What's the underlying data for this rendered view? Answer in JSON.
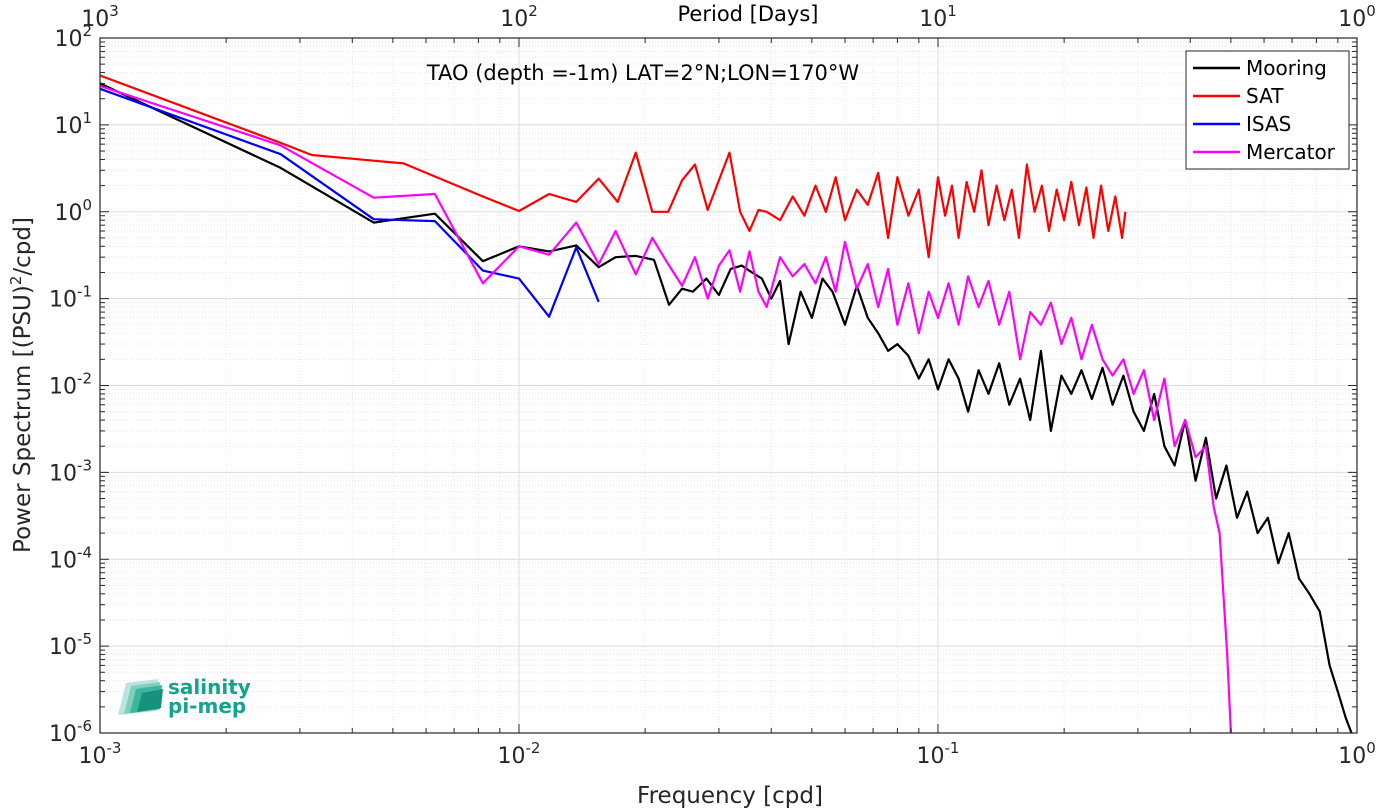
{
  "chart_data": {
    "type": "line",
    "title": "TAO (depth =-1m) LAT=2°N;LON=170°W",
    "xlabel": "Frequency [cpd]",
    "ylabel": "Power Spectrum [(PSU)",
    "ylabel_sup": "2",
    "ylabel_tail": "/cpd]",
    "top_xlabel": "Period [Days]",
    "xscale": "log",
    "yscale": "log",
    "xlim": [
      0.001,
      1
    ],
    "ylim": [
      1e-06,
      100
    ],
    "grid": true,
    "legend_position": "top-right",
    "x_ticks": [
      {
        "value": 0.001,
        "base": "10",
        "exp": "-3"
      },
      {
        "value": 0.01,
        "base": "10",
        "exp": "-2"
      },
      {
        "value": 0.1,
        "base": "10",
        "exp": "-1"
      },
      {
        "value": 1,
        "base": "10",
        "exp": "0"
      }
    ],
    "y_ticks": [
      {
        "value": 1e-06,
        "base": "10",
        "exp": "-6"
      },
      {
        "value": 1e-05,
        "base": "10",
        "exp": "-5"
      },
      {
        "value": 0.0001,
        "base": "10",
        "exp": "-4"
      },
      {
        "value": 0.001,
        "base": "10",
        "exp": "-3"
      },
      {
        "value": 0.01,
        "base": "10",
        "exp": "-2"
      },
      {
        "value": 0.1,
        "base": "10",
        "exp": "-1"
      },
      {
        "value": 1,
        "base": "10",
        "exp": "0"
      },
      {
        "value": 10,
        "base": "10",
        "exp": "1"
      },
      {
        "value": 100,
        "base": "10",
        "exp": "2"
      }
    ],
    "top_ticks": [
      {
        "value": 1000,
        "base": "10",
        "exp": "3"
      },
      {
        "value": 100,
        "base": "10",
        "exp": "2"
      },
      {
        "value": 10,
        "base": "10",
        "exp": "1"
      },
      {
        "value": 1,
        "base": "10",
        "exp": "0"
      }
    ],
    "series": [
      {
        "name": "Mooring",
        "color": "#000000",
        "x": [
          0.001,
          0.0027,
          0.0045,
          0.0063,
          0.0082,
          0.01,
          0.0118,
          0.0137,
          0.0155,
          0.017,
          0.019,
          0.021,
          0.0228,
          0.0245,
          0.026,
          0.028,
          0.03,
          0.032,
          0.034,
          0.036,
          0.038,
          0.04,
          0.042,
          0.044,
          0.047,
          0.05,
          0.053,
          0.056,
          0.06,
          0.064,
          0.068,
          0.072,
          0.076,
          0.08,
          0.085,
          0.09,
          0.095,
          0.1,
          0.106,
          0.112,
          0.118,
          0.125,
          0.132,
          0.14,
          0.148,
          0.157,
          0.166,
          0.176,
          0.186,
          0.197,
          0.208,
          0.22,
          0.233,
          0.247,
          0.261,
          0.277,
          0.293,
          0.31,
          0.328,
          0.347,
          0.367,
          0.389,
          0.412,
          0.436,
          0.461,
          0.488,
          0.517,
          0.547,
          0.579,
          0.613,
          0.649,
          0.687,
          0.727,
          0.77,
          0.815,
          0.86,
          0.9,
          0.94,
          0.97
        ],
        "y": [
          30,
          3.2,
          0.75,
          0.95,
          0.27,
          0.4,
          0.35,
          0.41,
          0.23,
          0.3,
          0.31,
          0.28,
          0.085,
          0.13,
          0.12,
          0.17,
          0.11,
          0.22,
          0.24,
          0.2,
          0.17,
          0.1,
          0.16,
          0.03,
          0.12,
          0.06,
          0.17,
          0.12,
          0.05,
          0.14,
          0.06,
          0.04,
          0.025,
          0.03,
          0.022,
          0.012,
          0.02,
          0.009,
          0.02,
          0.012,
          0.005,
          0.015,
          0.008,
          0.018,
          0.006,
          0.012,
          0.004,
          0.025,
          0.003,
          0.013,
          0.008,
          0.015,
          0.007,
          0.016,
          0.006,
          0.013,
          0.005,
          0.003,
          0.008,
          0.002,
          0.0012,
          0.004,
          0.0008,
          0.0025,
          0.0005,
          0.0012,
          0.0003,
          0.0006,
          0.0002,
          0.0003,
          9e-05,
          0.0002,
          6e-05,
          4e-05,
          2.5e-05,
          6e-06,
          3e-06,
          1.5e-06,
          1e-06
        ]
      },
      {
        "name": "SAT",
        "color": "#ff0000",
        "x": [
          0.001,
          0.0027,
          0.0032,
          0.0053,
          0.0082,
          0.01,
          0.0118,
          0.0137,
          0.0155,
          0.0172,
          0.019,
          0.0208,
          0.0227,
          0.0245,
          0.0263,
          0.0282,
          0.03,
          0.0318,
          0.0337,
          0.0355,
          0.0373,
          0.039,
          0.042,
          0.045,
          0.048,
          0.051,
          0.054,
          0.057,
          0.06,
          0.064,
          0.068,
          0.072,
          0.076,
          0.08,
          0.085,
          0.09,
          0.095,
          0.1,
          0.104,
          0.108,
          0.112,
          0.117,
          0.122,
          0.127,
          0.132,
          0.138,
          0.144,
          0.15,
          0.156,
          0.163,
          0.17,
          0.177,
          0.184,
          0.192,
          0.2,
          0.208,
          0.217,
          0.226,
          0.235,
          0.245,
          0.255,
          0.265,
          0.275,
          0.28
        ],
        "y": [
          37,
          6.2,
          4.5,
          3.6,
          1.5,
          1.02,
          1.6,
          1.3,
          2.4,
          1.3,
          4.8,
          1.0,
          1.0,
          2.3,
          3.5,
          1.05,
          2.3,
          4.8,
          1.0,
          0.6,
          1.05,
          1.0,
          0.8,
          1.5,
          0.9,
          2.0,
          1.0,
          2.5,
          0.8,
          1.8,
          1.2,
          2.8,
          0.5,
          2.5,
          0.9,
          1.8,
          0.3,
          2.5,
          0.9,
          2.0,
          0.5,
          2.2,
          1.0,
          3.0,
          0.7,
          2.0,
          0.8,
          1.8,
          0.5,
          3.5,
          1.0,
          2.0,
          0.6,
          1.8,
          0.8,
          2.2,
          0.7,
          1.9,
          0.5,
          2.0,
          0.6,
          1.5,
          0.5,
          1.0
        ]
      },
      {
        "name": "ISAS",
        "color": "#0000ff",
        "x": [
          0.001,
          0.0027,
          0.0045,
          0.0063,
          0.0082,
          0.01,
          0.0118,
          0.0137,
          0.0155
        ],
        "y": [
          26,
          4.6,
          0.82,
          0.78,
          0.21,
          0.17,
          0.062,
          0.39,
          0.092
        ]
      },
      {
        "name": "Mercator",
        "color": "#ff00ff",
        "x": [
          0.001,
          0.0027,
          0.0045,
          0.0063,
          0.0082,
          0.01,
          0.0118,
          0.0137,
          0.0155,
          0.017,
          0.019,
          0.0208,
          0.0227,
          0.0245,
          0.0263,
          0.0282,
          0.03,
          0.0318,
          0.0337,
          0.0355,
          0.0373,
          0.039,
          0.042,
          0.045,
          0.048,
          0.051,
          0.054,
          0.057,
          0.06,
          0.064,
          0.068,
          0.072,
          0.076,
          0.08,
          0.085,
          0.09,
          0.095,
          0.1,
          0.106,
          0.112,
          0.118,
          0.125,
          0.132,
          0.14,
          0.148,
          0.157,
          0.166,
          0.176,
          0.186,
          0.197,
          0.208,
          0.22,
          0.233,
          0.247,
          0.261,
          0.277,
          0.293,
          0.31,
          0.328,
          0.347,
          0.367,
          0.389,
          0.412,
          0.436,
          0.455,
          0.47,
          0.48,
          0.49,
          0.5
        ],
        "y": [
          28,
          5.8,
          1.45,
          1.6,
          0.15,
          0.4,
          0.32,
          0.75,
          0.25,
          0.6,
          0.19,
          0.5,
          0.25,
          0.14,
          0.3,
          0.1,
          0.24,
          0.36,
          0.12,
          0.35,
          0.12,
          0.08,
          0.3,
          0.18,
          0.25,
          0.15,
          0.3,
          0.12,
          0.45,
          0.13,
          0.25,
          0.08,
          0.22,
          0.05,
          0.15,
          0.04,
          0.12,
          0.06,
          0.15,
          0.05,
          0.18,
          0.08,
          0.16,
          0.05,
          0.12,
          0.02,
          0.07,
          0.05,
          0.09,
          0.03,
          0.06,
          0.02,
          0.05,
          0.02,
          0.013,
          0.02,
          0.008,
          0.015,
          0.004,
          0.012,
          0.002,
          0.004,
          0.0015,
          0.002,
          0.0004,
          0.0002,
          4e-05,
          8e-06,
          1e-06
        ]
      }
    ]
  },
  "logo": {
    "line1": "salinity",
    "line2": "pi-mep"
  }
}
